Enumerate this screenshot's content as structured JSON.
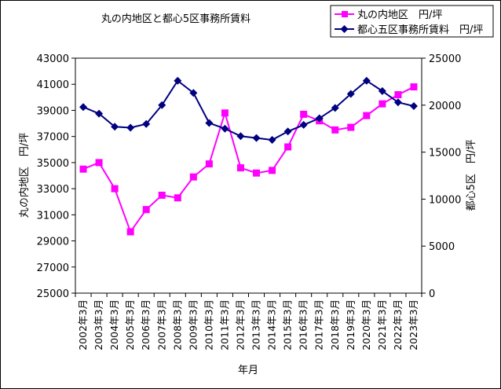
{
  "chart_data": {
    "type": "line",
    "title": "丸の内地区と都心5区事務所賃料",
    "xlabel": "年月",
    "ylabel_left": "丸の内地区　円/坪",
    "ylabel_right": "都心5区　円/坪",
    "categories": [
      "2002年3月",
      "2003年3月",
      "2004年3月",
      "2005年3月",
      "2006年3月",
      "2007年3月",
      "2008年3月",
      "2009年3月",
      "2010年3月",
      "2011年3月",
      "2012年3月",
      "2013年3月",
      "2014年3月",
      "2015年3月",
      "2016年3月",
      "2017年3月",
      "2018年3月",
      "2019年3月",
      "2020年3月",
      "2021年3月",
      "2022年3月",
      "2023年3月"
    ],
    "ylim_left": [
      25000,
      43000
    ],
    "yticks_left": [
      "25000",
      "27000",
      "29000",
      "31000",
      "33000",
      "35000",
      "37000",
      "39000",
      "41000",
      "43000"
    ],
    "ylim_right": [
      0,
      25000
    ],
    "yticks_right": [
      "0",
      "5000",
      "10000",
      "15000",
      "20000",
      "25000"
    ],
    "legend_position": "top-right",
    "series": [
      {
        "name": "丸の内地区　円/坪",
        "axis": "left",
        "color": "#ff00ff",
        "marker": "square",
        "values": [
          34500,
          35000,
          33000,
          29700,
          31400,
          32500,
          32300,
          33900,
          34900,
          38800,
          34600,
          34200,
          34400,
          36200,
          38700,
          38200,
          37500,
          37700,
          38600,
          39500,
          40200,
          40800
        ]
      },
      {
        "name": "都心五区事務所賃料　円/坪",
        "axis": "right",
        "color": "#000080",
        "marker": "diamond",
        "values": [
          19800,
          19100,
          17700,
          17600,
          18000,
          20000,
          22600,
          21300,
          18100,
          17500,
          16700,
          16500,
          16300,
          17200,
          17900,
          18600,
          19700,
          21200,
          22600,
          21500,
          20300,
          19900
        ]
      }
    ]
  }
}
